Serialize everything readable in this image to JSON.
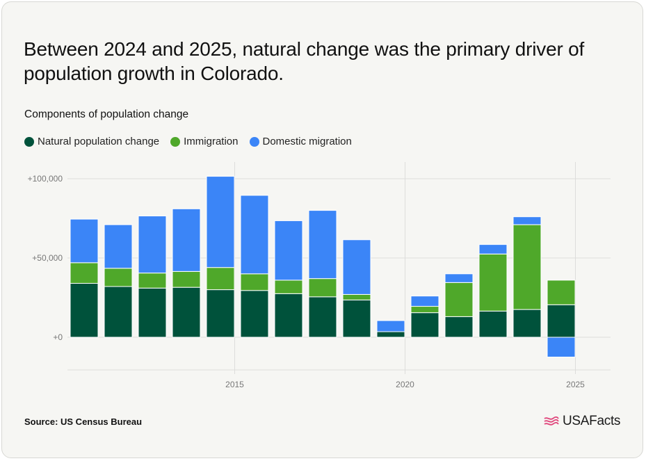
{
  "title": "Between 2024 and 2025, natural change was the primary driver of population growth in Colorado.",
  "subtitle": "Components of population change",
  "source": "Source: US Census Bureau",
  "brand": "USAFacts",
  "colors": {
    "natural": "#00523b",
    "immigration": "#4fa82a",
    "domestic": "#3b85f7",
    "grid": "#dddddb",
    "tick_text": "#777777"
  },
  "chart_data": {
    "type": "bar",
    "stacked": true,
    "x": [
      2011,
      2012,
      2013,
      2014,
      2015,
      2016,
      2017,
      2018,
      2019,
      2020,
      2021,
      2022,
      2023,
      2024,
      2025
    ],
    "x_ticks": [
      {
        "value": 2015,
        "label": "2015"
      },
      {
        "value": 2020,
        "label": "2020"
      },
      {
        "value": 2025,
        "label": "2025"
      }
    ],
    "y_ticks": [
      {
        "value": 0,
        "label": "+0"
      },
      {
        "value": 50000,
        "label": "+50,000"
      },
      {
        "value": 100000,
        "label": "+100,000"
      }
    ],
    "ylim": [
      -20000,
      110000
    ],
    "grid": true,
    "legend_position": "top-left",
    "series": [
      {
        "name": "Natural population change",
        "color_key": "natural",
        "values": [
          34000,
          32000,
          31000,
          31500,
          30000,
          29500,
          27500,
          25500,
          23500,
          3500,
          15500,
          13000,
          16500,
          17500,
          20500
        ]
      },
      {
        "name": "Immigration",
        "color_key": "immigration",
        "values": [
          13000,
          11500,
          9500,
          10000,
          14000,
          10500,
          8500,
          11500,
          3500,
          -400,
          4000,
          21500,
          36000,
          53500,
          15500
        ]
      },
      {
        "name": "Domestic migration",
        "color_key": "domestic",
        "values": [
          27500,
          27500,
          36000,
          39500,
          57500,
          49500,
          37500,
          43000,
          34500,
          7000,
          6500,
          5500,
          6000,
          5000,
          -12500
        ]
      }
    ]
  }
}
